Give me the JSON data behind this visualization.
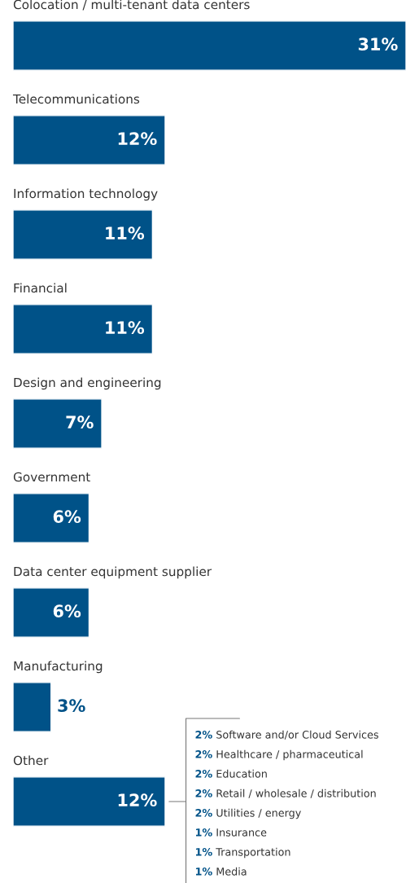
{
  "chart_data": {
    "type": "bar",
    "orientation": "horizontal",
    "categories": [
      "Colocation / multi-tenant data centers",
      "Telecommunications",
      "Information technology",
      "Financial",
      "Design and engineering",
      "Government",
      "Data center equipment supplier",
      "Manufacturing",
      "Other"
    ],
    "values": [
      31,
      12,
      11,
      11,
      7,
      6,
      6,
      3,
      12
    ],
    "value_labels": [
      "31%",
      "12%",
      "11%",
      "11%",
      "7%",
      "6%",
      "6%",
      "3%",
      "12%"
    ],
    "color": "#005288",
    "annotations": [
      "2% Software and/or Cloud Services",
      "2% Healthcare / pharmaceutical",
      "2% Education",
      "2% Retail / wholesale / distribution",
      "2% Utilities / energy",
      "1% Insurance",
      "1% Transportation",
      "1% Media"
    ]
  }
}
